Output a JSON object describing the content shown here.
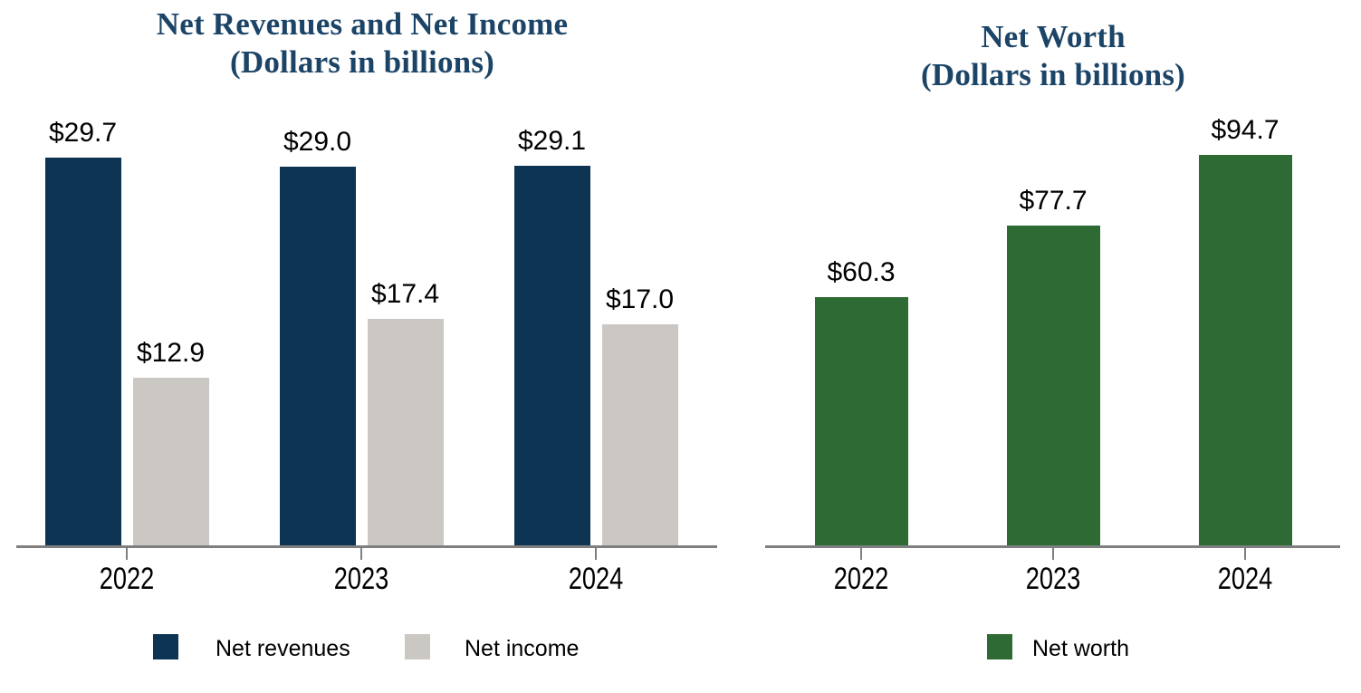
{
  "figure": {
    "title_color": "#1c4467",
    "axis_color": "#7f7f7f",
    "background": "#ffffff"
  },
  "chart_data": [
    {
      "type": "bar",
      "title": "Net Revenues and Net Income",
      "subtitle": "(Dollars in billions)",
      "categories": [
        "2022",
        "2023",
        "2024"
      ],
      "series": [
        {
          "name": "Net revenues",
          "color": "#0e3453",
          "values": [
            29.7,
            29.0,
            29.1
          ],
          "labels": [
            "$29.7",
            "$29.0",
            "$29.1"
          ]
        },
        {
          "name": "Net income",
          "color": "#cbc8c3",
          "values": [
            12.9,
            17.4,
            17.0
          ],
          "labels": [
            "$12.9",
            "$17.4",
            "$17.0"
          ]
        }
      ],
      "ylim": [
        0,
        32
      ],
      "grid": false,
      "legend_position": "bottom",
      "legend": [
        "Net revenues",
        "Net income"
      ]
    },
    {
      "type": "bar",
      "title": "Net Worth",
      "subtitle": "(Dollars in billions)",
      "categories": [
        "2022",
        "2023",
        "2024"
      ],
      "series": [
        {
          "name": "Net worth",
          "color": "#2e6b34",
          "values": [
            60.3,
            77.7,
            94.7
          ],
          "labels": [
            "$60.3",
            "$77.7",
            "$94.7"
          ]
        }
      ],
      "ylim": [
        0,
        100
      ],
      "grid": false,
      "legend_position": "bottom",
      "legend": [
        "Net worth"
      ]
    }
  ]
}
